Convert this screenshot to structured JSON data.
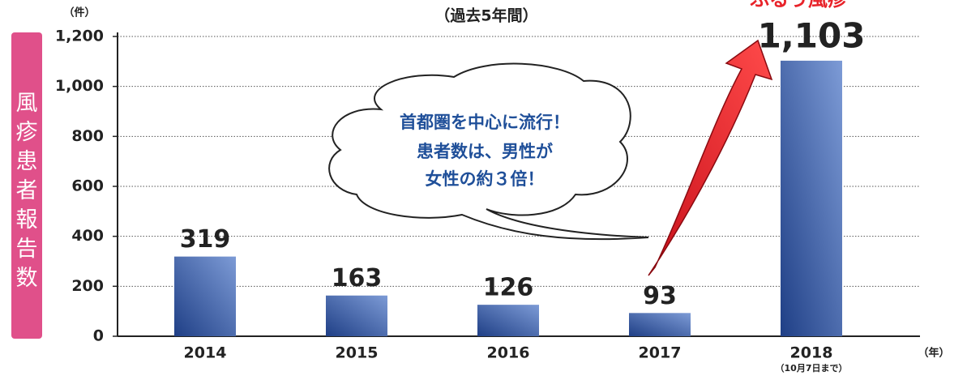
{
  "chart_data": {
    "type": "bar",
    "title": "（過去5年間）",
    "y_unit": "（件）",
    "x_unit": "（年）",
    "ylabel": "風疹患者報告数",
    "headline": "ふるう風疹",
    "callout": [
      "首都圏を中心に流行！",
      "患者数は、男性が",
      "女性の約３倍！"
    ],
    "categories": [
      "2014",
      "2015",
      "2016",
      "2017",
      "2018"
    ],
    "category_notes": [
      null,
      null,
      null,
      null,
      "（10月7日まで）"
    ],
    "values": [
      319,
      163,
      126,
      93,
      1103
    ],
    "value_labels": [
      "319",
      "163",
      "126",
      "93",
      "1,103"
    ],
    "color": "#2f5596",
    "ylim": [
      0,
      1200
    ],
    "yticks": [
      0,
      200,
      400,
      600,
      800,
      {
        "value": 1000,
        "label": "1,000"
      },
      {
        "value": 1200,
        "label": "1,200"
      }
    ],
    "grid": true
  }
}
